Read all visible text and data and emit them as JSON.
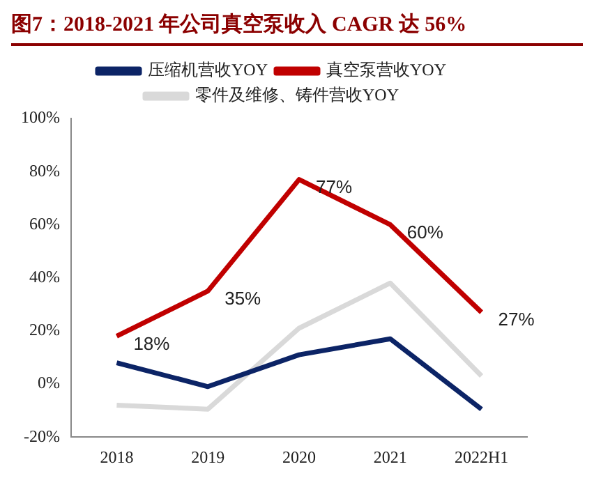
{
  "chart_data": {
    "type": "line",
    "title": "图7：2018-2021 年公司真空泵收入 CAGR 达 56%",
    "categories": [
      "2018",
      "2019",
      "2020",
      "2021",
      "2022H1"
    ],
    "series": [
      {
        "name": "压缩机营收YOY",
        "color": "#0c2466",
        "values": [
          8,
          -1,
          11,
          17,
          -9.5
        ]
      },
      {
        "name": "真空泵营收YOY",
        "color": "#c00000",
        "values": [
          18,
          35,
          77,
          60,
          27
        ],
        "value_labels": [
          "18%",
          "35%",
          "77%",
          "60%",
          "27%"
        ]
      },
      {
        "name": "零件及维修、铸件营收YOY",
        "color": "#d9d9d9",
        "values": [
          -8,
          -9.5,
          21,
          38,
          3
        ]
      }
    ],
    "ylim": [
      -20,
      100
    ],
    "yticks": [
      {
        "value": -20,
        "label": "-20%"
      },
      {
        "value": 0,
        "label": "0%"
      },
      {
        "value": 20,
        "label": "20%"
      },
      {
        "value": 40,
        "label": "40%"
      },
      {
        "value": 60,
        "label": "60%"
      },
      {
        "value": 80,
        "label": "80%"
      },
      {
        "value": 100,
        "label": "100%"
      }
    ],
    "grid": false,
    "legend": "top",
    "marker": "none",
    "line_style": "solid"
  }
}
